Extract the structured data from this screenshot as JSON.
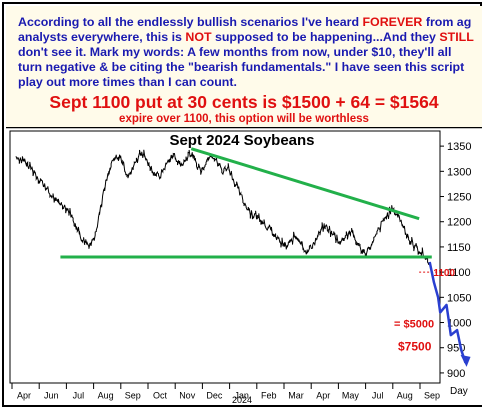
{
  "header": {
    "paragraph_parts": [
      "According to all the endlessly bullish scenarios I've heard ",
      "FOREVER",
      " from ag analysts everywhere, this is ",
      "NOT",
      " supposed to be happening...And they ",
      "STILL",
      " don't see it. Mark my words: A few months from now, under $10, they'll all turn negative & be citing the \"bearish fundamentals.\" I have seen this script play out more times than I can count."
    ],
    "headline": "Sept 1100 put at 30 cents is $1500 + 64 = $1564",
    "subline": "expire over 1100, this option will be worthless"
  },
  "colors": {
    "header_text": "#1a1ab0",
    "headline": "#e01010",
    "trendline": "#22b04a",
    "projection": "#2a3fd0",
    "annotation": "#e01010",
    "price": "#000000"
  },
  "chart_data": {
    "type": "line",
    "title": "Sept 2024 Soybeans",
    "xlabel": "Day",
    "year_label": "2024",
    "x_ticks": [
      "Apr",
      "Jun",
      "Jul",
      "Aug",
      "Sep",
      "Oct",
      "Nov",
      "Dec",
      "Jan",
      "Feb",
      "Mar",
      "Apr",
      "May",
      "Jul",
      "Aug",
      "Sep"
    ],
    "ylim": [
      880,
      1380
    ],
    "y_ticks": [
      900,
      950,
      1000,
      1050,
      1100,
      1150,
      1200,
      1250,
      1300,
      1350
    ],
    "y_tick_labels": [
      "900",
      "950",
      "1000",
      "1050",
      "1100",
      "1150",
      "1200",
      "1250",
      "1300",
      "1350"
    ],
    "x_range": [
      0,
      100
    ],
    "price_anchors": [
      [
        0.5,
        1330
      ],
      [
        1.5,
        1325
      ],
      [
        2.5,
        1318
      ],
      [
        3.5,
        1310
      ],
      [
        4.5,
        1302
      ],
      [
        5.5,
        1290
      ],
      [
        6.5,
        1280
      ],
      [
        7.5,
        1268
      ],
      [
        8.5,
        1255
      ],
      [
        9.5,
        1245
      ],
      [
        10.5,
        1238
      ],
      [
        11.5,
        1235
      ],
      [
        12.5,
        1228
      ],
      [
        13.5,
        1215
      ],
      [
        14.5,
        1195
      ],
      [
        15.5,
        1175
      ],
      [
        16.5,
        1160
      ],
      [
        17.5,
        1155
      ],
      [
        18.5,
        1162
      ],
      [
        19.5,
        1185
      ],
      [
        20.5,
        1230
      ],
      [
        21.5,
        1268
      ],
      [
        22.5,
        1300
      ],
      [
        23.5,
        1320
      ],
      [
        24.5,
        1330
      ],
      [
        25.5,
        1322
      ],
      [
        26.5,
        1300
      ],
      [
        27.5,
        1290
      ],
      [
        28.5,
        1315
      ],
      [
        29.5,
        1330
      ],
      [
        30.5,
        1335
      ],
      [
        31.5,
        1320
      ],
      [
        32.5,
        1305
      ],
      [
        33.5,
        1295
      ],
      [
        34.5,
        1290
      ],
      [
        35.5,
        1305
      ],
      [
        36.5,
        1320
      ],
      [
        37.5,
        1332
      ],
      [
        38.5,
        1325
      ],
      [
        39.5,
        1310
      ],
      [
        40.5,
        1320
      ],
      [
        41.5,
        1335
      ],
      [
        42.5,
        1330
      ],
      [
        43.5,
        1310
      ],
      [
        44.5,
        1300
      ],
      [
        45.5,
        1320
      ],
      [
        46.5,
        1335
      ],
      [
        47.5,
        1328
      ],
      [
        48.5,
        1312
      ],
      [
        49.5,
        1300
      ],
      [
        50.5,
        1310
      ],
      [
        51.5,
        1295
      ],
      [
        52.5,
        1275
      ],
      [
        53.5,
        1255
      ],
      [
        54.5,
        1240
      ],
      [
        55.5,
        1225
      ],
      [
        56.5,
        1215
      ],
      [
        57.5,
        1210
      ],
      [
        58.5,
        1205
      ],
      [
        59.5,
        1195
      ],
      [
        60.5,
        1185
      ],
      [
        61.5,
        1175
      ],
      [
        62.5,
        1165
      ],
      [
        63.5,
        1155
      ],
      [
        64.5,
        1150
      ],
      [
        65.5,
        1160
      ],
      [
        66.5,
        1170
      ],
      [
        67.5,
        1165
      ],
      [
        68.5,
        1150
      ],
      [
        69.5,
        1140
      ],
      [
        70.5,
        1150
      ],
      [
        71.5,
        1165
      ],
      [
        72.5,
        1180
      ],
      [
        73.5,
        1190
      ],
      [
        74.5,
        1185
      ],
      [
        75.5,
        1175
      ],
      [
        76.5,
        1165
      ],
      [
        77.5,
        1160
      ],
      [
        78.5,
        1170
      ],
      [
        79.5,
        1180
      ],
      [
        80.5,
        1170
      ],
      [
        81.5,
        1155
      ],
      [
        82.5,
        1145
      ],
      [
        83.5,
        1140
      ],
      [
        84.5,
        1150
      ],
      [
        85.5,
        1165
      ],
      [
        86.5,
        1185
      ],
      [
        87.5,
        1200
      ],
      [
        88.5,
        1215
      ],
      [
        89.5,
        1222
      ],
      [
        90.5,
        1218
      ],
      [
        91.5,
        1205
      ],
      [
        92.5,
        1185
      ],
      [
        93.5,
        1168
      ],
      [
        94.5,
        1155
      ],
      [
        95.5,
        1148
      ],
      [
        96.5,
        1138
      ],
      [
        97.5,
        1128
      ],
      [
        98.5,
        1120
      ]
    ],
    "annotations": {
      "strike_label": "1100",
      "mid_label": "= $5000",
      "low_label": "$7500"
    }
  }
}
